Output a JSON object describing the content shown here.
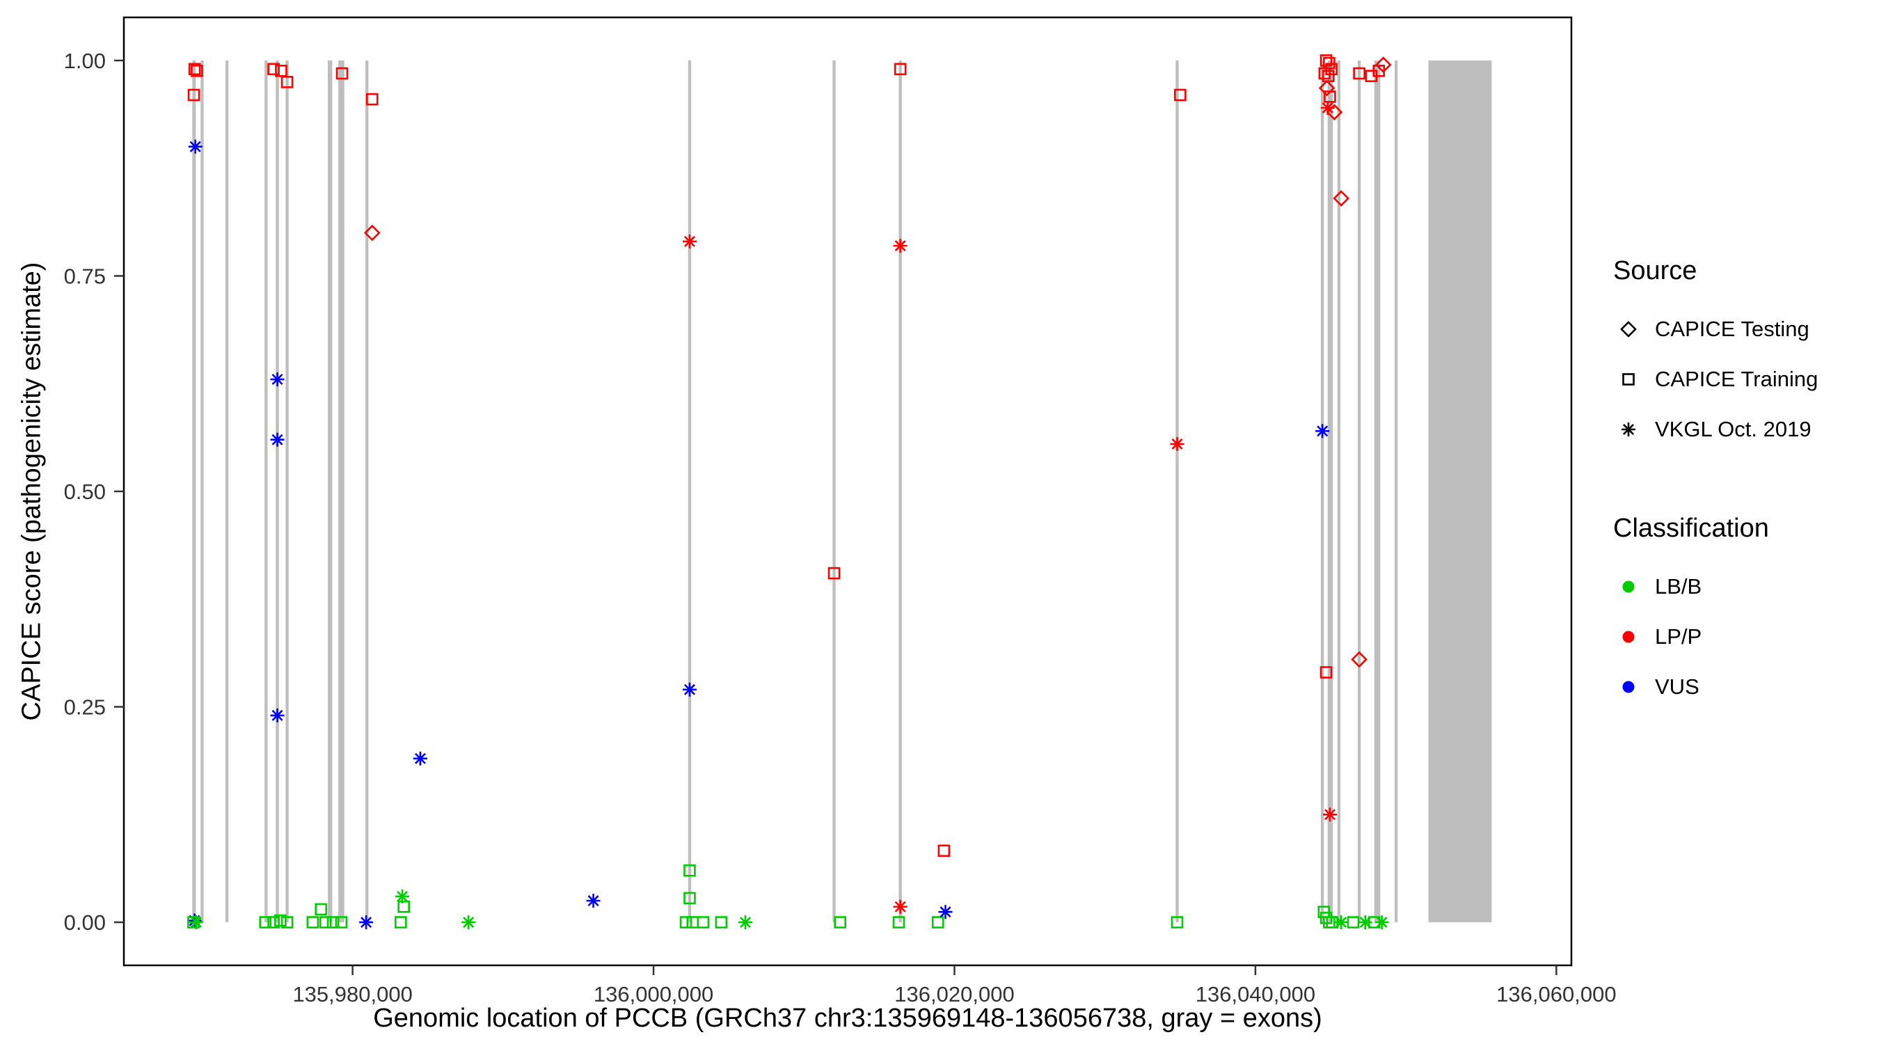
{
  "chart_data": {
    "type": "scatter",
    "title": "",
    "xlabel": "Genomic location of PCCB (GRCh37 chr3:135969148-136056738, gray = exons)",
    "ylabel": "CAPICE score (pathogenicity estimate)",
    "xlim": [
      135964800,
      136061000
    ],
    "ylim": [
      -0.05,
      1.05
    ],
    "grid": false,
    "x_ticks": [
      {
        "value": 135980000,
        "label": "135,980,000"
      },
      {
        "value": 136000000,
        "label": "136,000,000"
      },
      {
        "value": 136020000,
        "label": "136,020,000"
      },
      {
        "value": 136040000,
        "label": "136,040,000"
      },
      {
        "value": 136060000,
        "label": "136,060,000"
      }
    ],
    "y_ticks": [
      {
        "value": 0.0,
        "label": "0.00"
      },
      {
        "value": 0.25,
        "label": "0.25"
      },
      {
        "value": 0.5,
        "label": "0.50"
      },
      {
        "value": 0.75,
        "label": "0.75"
      },
      {
        "value": 1.0,
        "label": "1.00"
      }
    ],
    "colors": {
      "LB/B": "#00CC00",
      "LP/P": "#FF0000",
      "VUS": "#0000FF",
      "exon": "#BEBEBE",
      "axis": "#333333",
      "panel_border": "#000000"
    },
    "symbols": {
      "testing": "diamond",
      "training": "square",
      "vkgl": "asterisk"
    },
    "legend": {
      "source": {
        "title": "Source",
        "items": [
          {
            "label": "CAPICE Testing",
            "symbol": "diamond"
          },
          {
            "label": "CAPICE Training",
            "symbol": "square"
          },
          {
            "label": "VKGL Oct. 2019",
            "symbol": "asterisk"
          }
        ]
      },
      "classification": {
        "title": "Classification",
        "items": [
          {
            "label": "LB/B",
            "symbol": "circle",
            "color": "#00CC00"
          },
          {
            "label": "LP/P",
            "symbol": "circle",
            "color": "#FF0000"
          },
          {
            "label": "VUS",
            "symbol": "circle",
            "color": "#0000FF"
          }
        ]
      }
    },
    "exons": [
      {
        "start": 135969350,
        "end": 135969580
      },
      {
        "start": 135969900,
        "end": 135970100
      },
      {
        "start": 135971550,
        "end": 135971750
      },
      {
        "start": 135974150,
        "end": 135974350
      },
      {
        "start": 135974900,
        "end": 135975100
      },
      {
        "start": 135975550,
        "end": 135975750
      },
      {
        "start": 135978350,
        "end": 135978650
      },
      {
        "start": 135979050,
        "end": 135979450
      },
      {
        "start": 135980850,
        "end": 135981050
      },
      {
        "start": 136002300,
        "end": 136002500
      },
      {
        "start": 136011900,
        "end": 136012100
      },
      {
        "start": 136016300,
        "end": 136016500
      },
      {
        "start": 136034700,
        "end": 136034900
      },
      {
        "start": 136044350,
        "end": 136044550
      },
      {
        "start": 136044800,
        "end": 136045150
      },
      {
        "start": 136045450,
        "end": 136045650
      },
      {
        "start": 136046800,
        "end": 136047000
      },
      {
        "start": 136047900,
        "end": 136048300
      },
      {
        "start": 136049250,
        "end": 136049450
      },
      {
        "start": 136051500,
        "end": 136055700
      }
    ],
    "points": [
      {
        "x": 135969450,
        "y": 0.96,
        "source": "training",
        "classification": "LP/P"
      },
      {
        "x": 135969500,
        "y": 0.99,
        "source": "training",
        "classification": "LP/P"
      },
      {
        "x": 135969650,
        "y": 0.988,
        "source": "training",
        "classification": "LP/P"
      },
      {
        "x": 135969550,
        "y": 0.9,
        "source": "vkgl",
        "classification": "VUS"
      },
      {
        "x": 135969500,
        "y": 0.002,
        "source": "vkgl",
        "classification": "VUS"
      },
      {
        "x": 135969420,
        "y": 0.0,
        "source": "training",
        "classification": "LB/B"
      },
      {
        "x": 135969600,
        "y": 0.0,
        "source": "vkgl",
        "classification": "LB/B"
      },
      {
        "x": 135974750,
        "y": 0.99,
        "source": "training",
        "classification": "LP/P"
      },
      {
        "x": 135975250,
        "y": 0.988,
        "source": "training",
        "classification": "LP/P"
      },
      {
        "x": 135975650,
        "y": 0.975,
        "source": "training",
        "classification": "LP/P"
      },
      {
        "x": 135975000,
        "y": 0.63,
        "source": "vkgl",
        "classification": "VUS"
      },
      {
        "x": 135975000,
        "y": 0.56,
        "source": "vkgl",
        "classification": "VUS"
      },
      {
        "x": 135975000,
        "y": 0.24,
        "source": "vkgl",
        "classification": "VUS"
      },
      {
        "x": 135974200,
        "y": 0.0,
        "source": "training",
        "classification": "LB/B"
      },
      {
        "x": 135974750,
        "y": 0.0,
        "source": "training",
        "classification": "LB/B"
      },
      {
        "x": 135975200,
        "y": 0.002,
        "source": "training",
        "classification": "LB/B"
      },
      {
        "x": 135975650,
        "y": 0.0,
        "source": "training",
        "classification": "LB/B"
      },
      {
        "x": 135979300,
        "y": 0.985,
        "source": "training",
        "classification": "LP/P"
      },
      {
        "x": 135977350,
        "y": 0.0,
        "source": "training",
        "classification": "LB/B"
      },
      {
        "x": 135977900,
        "y": 0.015,
        "source": "training",
        "classification": "LB/B"
      },
      {
        "x": 135978200,
        "y": 0.0,
        "source": "training",
        "classification": "LB/B"
      },
      {
        "x": 135978700,
        "y": 0.0,
        "source": "training",
        "classification": "LB/B"
      },
      {
        "x": 135979250,
        "y": 0.0,
        "source": "training",
        "classification": "LB/B"
      },
      {
        "x": 135980900,
        "y": 0.0,
        "source": "vkgl",
        "classification": "VUS"
      },
      {
        "x": 135981300,
        "y": 0.955,
        "source": "training",
        "classification": "LP/P"
      },
      {
        "x": 135981300,
        "y": 0.8,
        "source": "testing",
        "classification": "LP/P"
      },
      {
        "x": 135983300,
        "y": 0.03,
        "source": "vkgl",
        "classification": "LB/B"
      },
      {
        "x": 135983400,
        "y": 0.018,
        "source": "training",
        "classification": "LB/B"
      },
      {
        "x": 135983200,
        "y": 0.0,
        "source": "training",
        "classification": "LB/B"
      },
      {
        "x": 135984500,
        "y": 0.19,
        "source": "vkgl",
        "classification": "VUS"
      },
      {
        "x": 135987700,
        "y": 0.0,
        "source": "vkgl",
        "classification": "LB/B"
      },
      {
        "x": 135996000,
        "y": 0.025,
        "source": "vkgl",
        "classification": "VUS"
      },
      {
        "x": 136002400,
        "y": 0.79,
        "source": "vkgl",
        "classification": "LP/P"
      },
      {
        "x": 136002400,
        "y": 0.27,
        "source": "vkgl",
        "classification": "VUS"
      },
      {
        "x": 136002400,
        "y": 0.06,
        "source": "training",
        "classification": "LB/B"
      },
      {
        "x": 136002400,
        "y": 0.028,
        "source": "training",
        "classification": "LB/B"
      },
      {
        "x": 136002150,
        "y": 0.0,
        "source": "training",
        "classification": "LB/B"
      },
      {
        "x": 136002600,
        "y": 0.0,
        "source": "training",
        "classification": "LB/B"
      },
      {
        "x": 136003300,
        "y": 0.0,
        "source": "training",
        "classification": "LB/B"
      },
      {
        "x": 136004500,
        "y": 0.0,
        "source": "training",
        "classification": "LB/B"
      },
      {
        "x": 136006100,
        "y": 0.0,
        "source": "vkgl",
        "classification": "LB/B"
      },
      {
        "x": 136012000,
        "y": 0.405,
        "source": "training",
        "classification": "LP/P"
      },
      {
        "x": 136012400,
        "y": 0.0,
        "source": "training",
        "classification": "LB/B"
      },
      {
        "x": 136016400,
        "y": 0.99,
        "source": "training",
        "classification": "LP/P"
      },
      {
        "x": 136016400,
        "y": 0.785,
        "source": "vkgl",
        "classification": "LP/P"
      },
      {
        "x": 136016400,
        "y": 0.018,
        "source": "vkgl",
        "classification": "LP/P"
      },
      {
        "x": 136016300,
        "y": 0.0,
        "source": "training",
        "classification": "LB/B"
      },
      {
        "x": 136019300,
        "y": 0.083,
        "source": "training",
        "classification": "LP/P"
      },
      {
        "x": 136018900,
        "y": 0.0,
        "source": "training",
        "classification": "LB/B"
      },
      {
        "x": 136019400,
        "y": 0.012,
        "source": "vkgl",
        "classification": "VUS"
      },
      {
        "x": 136035000,
        "y": 0.96,
        "source": "training",
        "classification": "LP/P"
      },
      {
        "x": 136034800,
        "y": 0.555,
        "source": "vkgl",
        "classification": "LP/P"
      },
      {
        "x": 136034800,
        "y": 0.0,
        "source": "training",
        "classification": "LB/B"
      },
      {
        "x": 136044700,
        "y": 1.0,
        "source": "training",
        "classification": "LP/P"
      },
      {
        "x": 136044900,
        "y": 0.997,
        "source": "training",
        "classification": "LP/P"
      },
      {
        "x": 136044600,
        "y": 0.985,
        "source": "training",
        "classification": "LP/P"
      },
      {
        "x": 136044850,
        "y": 0.982,
        "source": "training",
        "classification": "LP/P"
      },
      {
        "x": 136045050,
        "y": 0.99,
        "source": "training",
        "classification": "LP/P"
      },
      {
        "x": 136044750,
        "y": 0.968,
        "source": "testing",
        "classification": "LP/P"
      },
      {
        "x": 136044950,
        "y": 0.958,
        "source": "training",
        "classification": "LP/P"
      },
      {
        "x": 136044800,
        "y": 0.945,
        "source": "vkgl",
        "classification": "LP/P"
      },
      {
        "x": 136045250,
        "y": 0.94,
        "source": "testing",
        "classification": "LP/P"
      },
      {
        "x": 136046900,
        "y": 0.985,
        "source": "training",
        "classification": "LP/P"
      },
      {
        "x": 136047700,
        "y": 0.982,
        "source": "training",
        "classification": "LP/P"
      },
      {
        "x": 136048200,
        "y": 0.988,
        "source": "training",
        "classification": "LP/P"
      },
      {
        "x": 136048500,
        "y": 0.995,
        "source": "testing",
        "classification": "LP/P"
      },
      {
        "x": 136045700,
        "y": 0.84,
        "source": "testing",
        "classification": "LP/P"
      },
      {
        "x": 136044450,
        "y": 0.57,
        "source": "vkgl",
        "classification": "VUS"
      },
      {
        "x": 136044700,
        "y": 0.29,
        "source": "training",
        "classification": "LP/P"
      },
      {
        "x": 136046900,
        "y": 0.305,
        "source": "testing",
        "classification": "LP/P"
      },
      {
        "x": 136044950,
        "y": 0.125,
        "source": "vkgl",
        "classification": "LP/P"
      },
      {
        "x": 136044550,
        "y": 0.012,
        "source": "training",
        "classification": "LB/B"
      },
      {
        "x": 136044700,
        "y": 0.005,
        "source": "training",
        "classification": "LB/B"
      },
      {
        "x": 136044900,
        "y": 0.0,
        "source": "training",
        "classification": "LB/B"
      },
      {
        "x": 136045100,
        "y": 0.0,
        "source": "training",
        "classification": "LB/B"
      },
      {
        "x": 136045700,
        "y": 0.0,
        "source": "vkgl",
        "classification": "LB/B"
      },
      {
        "x": 136046500,
        "y": 0.0,
        "source": "training",
        "classification": "LB/B"
      },
      {
        "x": 136047300,
        "y": 0.0,
        "source": "vkgl",
        "classification": "LB/B"
      },
      {
        "x": 136047900,
        "y": 0.0,
        "source": "training",
        "classification": "LB/B"
      },
      {
        "x": 136048400,
        "y": 0.0,
        "source": "vkgl",
        "classification": "LB/B"
      }
    ]
  }
}
